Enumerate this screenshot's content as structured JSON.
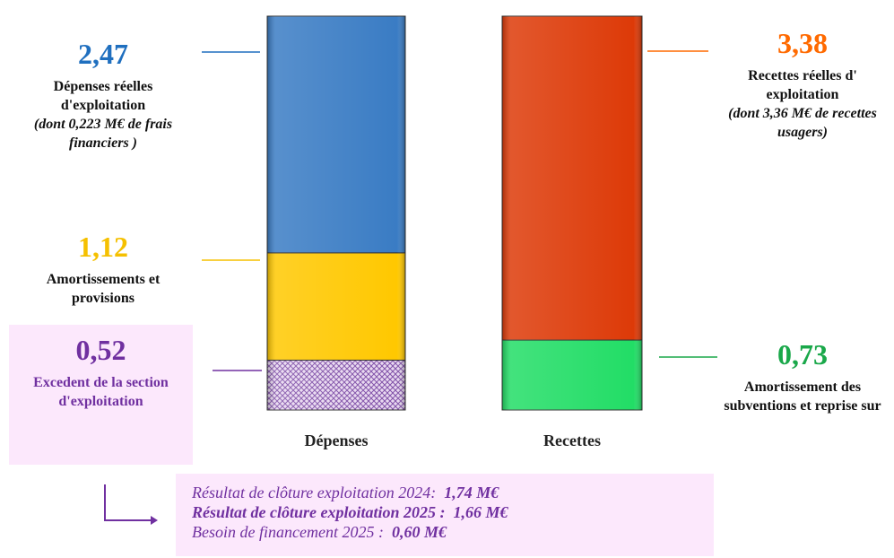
{
  "chart_data": {
    "type": "stacked-bar",
    "categories": [
      "Dépenses",
      "Recettes"
    ],
    "series": [
      {
        "name": "Excedent de la section d'exploitation",
        "color": "pattern",
        "label_color": "#7030a0",
        "values": [
          0.52,
          null
        ],
        "value_labels": [
          "0,52",
          null
        ]
      },
      {
        "name": "Amortissements et provisions",
        "color": "#ffc800",
        "label_color": "#f5c000",
        "values": [
          1.12,
          null
        ],
        "value_labels": [
          "1,12",
          null
        ]
      },
      {
        "name": "Dépenses réelles d'exploitation",
        "note": "(dont 0,223 M€ de frais financiers )",
        "color": "#3a7cc4",
        "label_color": "#1f6fbf",
        "values": [
          2.47,
          null
        ],
        "value_labels": [
          "2,47",
          null
        ]
      },
      {
        "name": "Amortissement des subventions et reprise sur",
        "color": "#22dd66",
        "label_color": "#1aa84a",
        "values": [
          null,
          0.73
        ],
        "value_labels": [
          null,
          "0,73"
        ]
      },
      {
        "name": "Recettes réelles d' exploitation",
        "note": "(dont 3,36 M€ de recettes usagers)",
        "color": "#dd3a08",
        "label_color": "#ff6a00",
        "values": [
          null,
          3.38
        ],
        "value_labels": [
          null,
          "3,38"
        ]
      }
    ]
  },
  "footer": {
    "lines": [
      {
        "label": "Résultat de clôture exploitation 2024:",
        "value": "1,74 M€",
        "bold": false
      },
      {
        "label": "Résultat de clôture exploitation 2025 :",
        "value": "1,66 M€",
        "bold": true
      },
      {
        "label": "Besoin de financement 2025 :",
        "value": "0,60 M€",
        "bold": false
      }
    ]
  }
}
